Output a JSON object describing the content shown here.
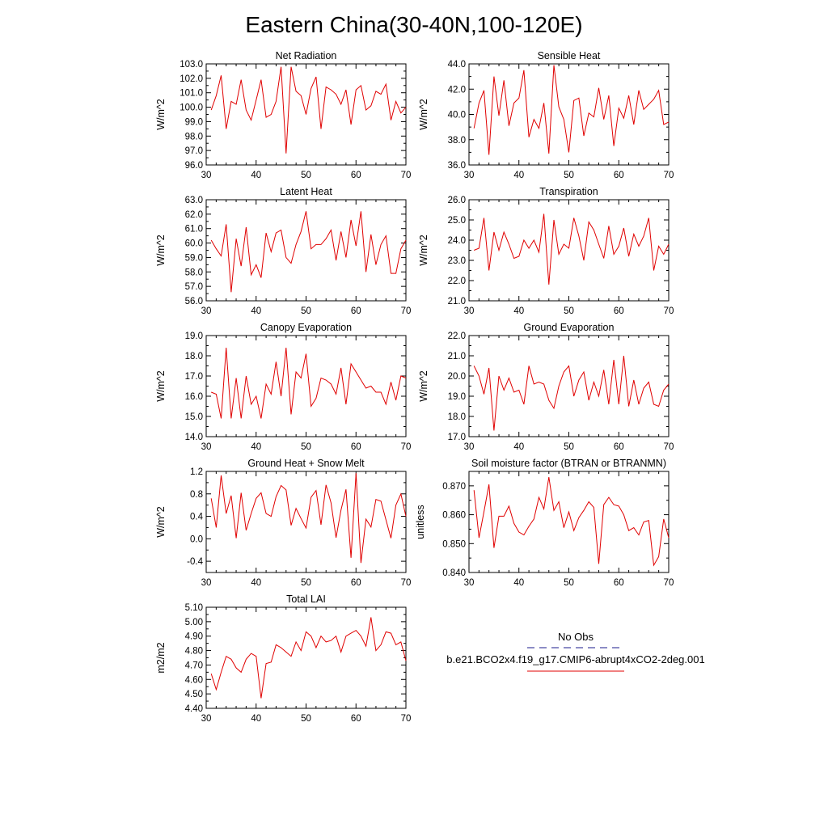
{
  "figure": {
    "title": "Eastern China(30-40N,100-120E)"
  },
  "legend": {
    "entries": [
      {
        "label": "No Obs",
        "color": "#1a1a8c",
        "style": "dashed"
      },
      {
        "label": "b.e21.BCO2x4.f19_g17.CMIP6-abrupt4xCO2-2deg.001",
        "color": "#e00000",
        "style": "solid"
      }
    ]
  },
  "chart_data": [
    {
      "type": "line",
      "title": "Net Radiation",
      "ylabel": "W/m^2",
      "xlim": [
        30,
        70
      ],
      "ylim": [
        96.0,
        103.0
      ],
      "xticks": [
        30,
        40,
        50,
        60,
        70
      ],
      "xtick_labels": [
        "30",
        "40",
        "50",
        "60",
        "70"
      ],
      "yticks": [
        96.0,
        97.0,
        98.0,
        99.0,
        100.0,
        101.0,
        102.0,
        103.0
      ],
      "ytick_labels": [
        "96.0",
        "97.0",
        "98.0",
        "99.0",
        "100.0",
        "101.0",
        "102.0",
        "103.0"
      ],
      "x": [
        31,
        32,
        33,
        34,
        35,
        36,
        37,
        38,
        39,
        40,
        41,
        42,
        43,
        44,
        45,
        46,
        47,
        48,
        49,
        50,
        51,
        52,
        53,
        54,
        55,
        56,
        57,
        58,
        59,
        60,
        61,
        62,
        63,
        64,
        65,
        66,
        67,
        68,
        69,
        70
      ],
      "series": [
        {
          "name": "b.e21.BCO2x4.f19_g17.CMIP6-abrupt4xCO2-2deg.001",
          "color": "#e00000",
          "values": [
            99.8,
            100.8,
            102.2,
            98.5,
            100.4,
            100.2,
            101.9,
            99.8,
            99.1,
            100.5,
            101.9,
            99.3,
            99.5,
            100.4,
            102.8,
            96.8,
            102.8,
            101.1,
            100.8,
            99.5,
            101.3,
            102.1,
            98.5,
            101.4,
            101.2,
            100.9,
            100.2,
            101.2,
            98.8,
            101.2,
            101.5,
            99.8,
            100.1,
            101.1,
            100.9,
            101.6,
            99.1,
            100.4,
            99.6,
            100.0
          ]
        }
      ]
    },
    {
      "type": "line",
      "title": "Sensible Heat",
      "ylabel": "W/m^2",
      "xlim": [
        30,
        70
      ],
      "ylim": [
        36.0,
        44.0
      ],
      "xticks": [
        30,
        40,
        50,
        60,
        70
      ],
      "xtick_labels": [
        "30",
        "40",
        "50",
        "60",
        "70"
      ],
      "yticks": [
        36.0,
        38.0,
        40.0,
        42.0,
        44.0
      ],
      "ytick_labels": [
        "36.0",
        "38.0",
        "40.0",
        "42.0",
        "44.0"
      ],
      "x": [
        31,
        32,
        33,
        34,
        35,
        36,
        37,
        38,
        39,
        40,
        41,
        42,
        43,
        44,
        45,
        46,
        47,
        48,
        49,
        50,
        51,
        52,
        53,
        54,
        55,
        56,
        57,
        58,
        59,
        60,
        61,
        62,
        63,
        64,
        65,
        66,
        67,
        68,
        69,
        70
      ],
      "series": [
        {
          "name": "b.e21.BCO2x4.f19_g17.CMIP6-abrupt4xCO2-2deg.001",
          "color": "#e00000",
          "values": [
            38.9,
            40.9,
            41.9,
            36.8,
            43.0,
            39.9,
            42.7,
            39.1,
            40.9,
            41.3,
            43.5,
            38.2,
            39.6,
            38.9,
            40.9,
            36.9,
            43.9,
            40.6,
            39.6,
            37.0,
            41.1,
            41.3,
            38.3,
            40.1,
            39.8,
            42.1,
            39.6,
            41.5,
            37.5,
            40.5,
            39.7,
            41.5,
            39.2,
            41.9,
            40.4,
            40.8,
            41.2,
            41.9,
            39.2,
            39.4
          ]
        }
      ]
    },
    {
      "type": "line",
      "title": "Latent Heat",
      "ylabel": "W/m^2",
      "xlim": [
        30,
        70
      ],
      "ylim": [
        56.0,
        63.0
      ],
      "xticks": [
        30,
        40,
        50,
        60,
        70
      ],
      "xtick_labels": [
        "30",
        "40",
        "50",
        "60",
        "70"
      ],
      "yticks": [
        56.0,
        57.0,
        58.0,
        59.0,
        60.0,
        61.0,
        62.0,
        63.0
      ],
      "ytick_labels": [
        "56.0",
        "57.0",
        "58.0",
        "59.0",
        "60.0",
        "61.0",
        "62.0",
        "63.0"
      ],
      "x": [
        31,
        32,
        33,
        34,
        35,
        36,
        37,
        38,
        39,
        40,
        41,
        42,
        43,
        44,
        45,
        46,
        47,
        48,
        49,
        50,
        51,
        52,
        53,
        54,
        55,
        56,
        57,
        58,
        59,
        60,
        61,
        62,
        63,
        64,
        65,
        66,
        67,
        68,
        69,
        70
      ],
      "series": [
        {
          "name": "b.e21.BCO2x4.f19_g17.CMIP6-abrupt4xCO2-2deg.001",
          "color": "#e00000",
          "values": [
            60.2,
            59.6,
            59.1,
            61.3,
            56.6,
            60.3,
            58.4,
            61.1,
            57.8,
            58.5,
            57.6,
            60.7,
            59.4,
            60.7,
            60.9,
            59.0,
            58.6,
            59.9,
            60.8,
            62.2,
            59.6,
            59.9,
            59.9,
            60.3,
            60.9,
            58.8,
            60.8,
            59.0,
            61.6,
            59.8,
            62.2,
            58.0,
            60.6,
            58.5,
            59.9,
            60.5,
            57.9,
            57.9,
            59.6,
            60.2
          ]
        }
      ]
    },
    {
      "type": "line",
      "title": "Transpiration",
      "ylabel": "W/m^2",
      "xlim": [
        30,
        70
      ],
      "ylim": [
        21.0,
        26.0
      ],
      "xticks": [
        30,
        40,
        50,
        60,
        70
      ],
      "xtick_labels": [
        "30",
        "40",
        "50",
        "60",
        "70"
      ],
      "yticks": [
        21.0,
        22.0,
        23.0,
        24.0,
        25.0,
        26.0
      ],
      "ytick_labels": [
        "21.0",
        "22.0",
        "23.0",
        "24.0",
        "25.0",
        "26.0"
      ],
      "x": [
        31,
        32,
        33,
        34,
        35,
        36,
        37,
        38,
        39,
        40,
        41,
        42,
        43,
        44,
        45,
        46,
        47,
        48,
        49,
        50,
        51,
        52,
        53,
        54,
        55,
        56,
        57,
        58,
        59,
        60,
        61,
        62,
        63,
        64,
        65,
        66,
        67,
        68,
        69,
        70
      ],
      "series": [
        {
          "name": "b.e21.BCO2x4.f19_g17.CMIP6-abrupt4xCO2-2deg.001",
          "color": "#e00000",
          "values": [
            23.5,
            23.6,
            25.1,
            22.5,
            24.4,
            23.5,
            24.4,
            23.8,
            23.1,
            23.2,
            24.0,
            23.6,
            24.0,
            23.4,
            25.3,
            21.8,
            25.0,
            23.3,
            23.8,
            23.6,
            25.1,
            24.2,
            23.0,
            24.9,
            24.5,
            23.8,
            23.1,
            24.7,
            23.3,
            23.7,
            24.6,
            23.2,
            24.3,
            23.7,
            24.2,
            25.1,
            22.5,
            23.7,
            23.3,
            23.8
          ]
        }
      ]
    },
    {
      "type": "line",
      "title": "Canopy Evaporation",
      "ylabel": "W/m^2",
      "xlim": [
        30,
        70
      ],
      "ylim": [
        14.0,
        19.0
      ],
      "xticks": [
        30,
        40,
        50,
        60,
        70
      ],
      "xtick_labels": [
        "30",
        "40",
        "50",
        "60",
        "70"
      ],
      "yticks": [
        14.0,
        15.0,
        16.0,
        17.0,
        18.0,
        19.0
      ],
      "ytick_labels": [
        "14.0",
        "15.0",
        "16.0",
        "17.0",
        "18.0",
        "19.0"
      ],
      "x": [
        31,
        32,
        33,
        34,
        35,
        36,
        37,
        38,
        39,
        40,
        41,
        42,
        43,
        44,
        45,
        46,
        47,
        48,
        49,
        50,
        51,
        52,
        53,
        54,
        55,
        56,
        57,
        58,
        59,
        60,
        61,
        62,
        63,
        64,
        65,
        66,
        67,
        68,
        69,
        70
      ],
      "series": [
        {
          "name": "b.e21.BCO2x4.f19_g17.CMIP6-abrupt4xCO2-2deg.001",
          "color": "#e00000",
          "values": [
            16.2,
            16.1,
            14.9,
            18.4,
            14.9,
            16.9,
            14.9,
            17.0,
            15.6,
            16.0,
            14.9,
            16.6,
            16.1,
            17.7,
            16.0,
            18.4,
            15.1,
            17.2,
            16.9,
            18.1,
            15.5,
            15.9,
            16.9,
            16.8,
            16.6,
            16.1,
            17.4,
            15.6,
            17.6,
            17.2,
            16.8,
            16.4,
            16.5,
            16.2,
            16.2,
            15.6,
            16.7,
            15.8,
            17.0,
            16.9
          ]
        }
      ]
    },
    {
      "type": "line",
      "title": "Ground Evaporation",
      "ylabel": "W/m^2",
      "xlim": [
        30,
        70
      ],
      "ylim": [
        17.0,
        22.0
      ],
      "xticks": [
        30,
        40,
        50,
        60,
        70
      ],
      "xtick_labels": [
        "30",
        "40",
        "50",
        "60",
        "70"
      ],
      "yticks": [
        17.0,
        18.0,
        19.0,
        20.0,
        21.0,
        22.0
      ],
      "ytick_labels": [
        "17.0",
        "18.0",
        "19.0",
        "20.0",
        "21.0",
        "22.0"
      ],
      "x": [
        31,
        32,
        33,
        34,
        35,
        36,
        37,
        38,
        39,
        40,
        41,
        42,
        43,
        44,
        45,
        46,
        47,
        48,
        49,
        50,
        51,
        52,
        53,
        54,
        55,
        56,
        57,
        58,
        59,
        60,
        61,
        62,
        63,
        64,
        65,
        66,
        67,
        68,
        69,
        70
      ],
      "series": [
        {
          "name": "b.e21.BCO2x4.f19_g17.CMIP6-abrupt4xCO2-2deg.001",
          "color": "#e00000",
          "values": [
            20.5,
            20.0,
            19.1,
            20.4,
            17.3,
            20.0,
            19.3,
            19.9,
            19.2,
            19.3,
            18.6,
            20.5,
            19.6,
            19.7,
            19.6,
            18.8,
            18.4,
            19.5,
            20.2,
            20.5,
            19.0,
            19.8,
            20.2,
            18.8,
            19.7,
            19.0,
            20.3,
            18.6,
            20.8,
            18.6,
            21.0,
            18.5,
            19.8,
            18.6,
            19.4,
            19.7,
            18.6,
            18.5,
            19.3,
            19.6
          ]
        }
      ]
    },
    {
      "type": "line",
      "title": "Ground Heat + Snow Melt",
      "ylabel": "W/m^2",
      "xlim": [
        30,
        70
      ],
      "ylim": [
        -0.6,
        1.2
      ],
      "xticks": [
        30,
        40,
        50,
        60,
        70
      ],
      "xtick_labels": [
        "30",
        "40",
        "50",
        "60",
        "70"
      ],
      "yticks": [
        -0.4,
        0.0,
        0.4,
        0.8,
        1.2
      ],
      "ytick_labels": [
        "-0.4",
        "0.0",
        "0.4",
        "0.8",
        "1.2"
      ],
      "x": [
        31,
        32,
        33,
        34,
        35,
        36,
        37,
        38,
        39,
        40,
        41,
        42,
        43,
        44,
        45,
        46,
        47,
        48,
        49,
        50,
        51,
        52,
        53,
        54,
        55,
        56,
        57,
        58,
        59,
        60,
        61,
        62,
        63,
        64,
        65,
        66,
        67,
        68,
        69,
        70
      ],
      "series": [
        {
          "name": "b.e21.BCO2x4.f19_g17.CMIP6-abrupt4xCO2-2deg.001",
          "color": "#e00000",
          "values": [
            0.72,
            0.2,
            1.13,
            0.45,
            0.77,
            0.01,
            0.82,
            0.15,
            0.45,
            0.72,
            0.82,
            0.45,
            0.4,
            0.75,
            0.95,
            0.87,
            0.24,
            0.54,
            0.36,
            0.19,
            0.74,
            0.86,
            0.25,
            0.96,
            0.64,
            0.02,
            0.51,
            0.88,
            -0.34,
            1.17,
            -0.43,
            0.35,
            0.21,
            0.7,
            0.67,
            0.34,
            0.01,
            0.6,
            0.8,
            0.4
          ]
        }
      ]
    },
    {
      "type": "line",
      "title": "Soil moisture factor (BTRAN or BTRANMN)",
      "ylabel": "unitless",
      "xlim": [
        30,
        70
      ],
      "ylim": [
        0.84,
        0.875
      ],
      "xticks": [
        30,
        40,
        50,
        60,
        70
      ],
      "xtick_labels": [
        "30",
        "40",
        "50",
        "60",
        "70"
      ],
      "yticks": [
        0.84,
        0.85,
        0.86,
        0.87
      ],
      "ytick_labels": [
        "0.840",
        "0.850",
        "0.860",
        "0.870"
      ],
      "x": [
        31,
        32,
        33,
        34,
        35,
        36,
        37,
        38,
        39,
        40,
        41,
        42,
        43,
        44,
        45,
        46,
        47,
        48,
        49,
        50,
        51,
        52,
        53,
        54,
        55,
        56,
        57,
        58,
        59,
        60,
        61,
        62,
        63,
        64,
        65,
        66,
        67,
        68,
        69,
        70
      ],
      "series": [
        {
          "name": "b.e21.BCO2x4.f19_g17.CMIP6-abrupt4xCO2-2deg.001",
          "color": "#e00000",
          "values": [
            0.8685,
            0.852,
            0.861,
            0.8705,
            0.8485,
            0.8595,
            0.8595,
            0.863,
            0.857,
            0.854,
            0.853,
            0.856,
            0.8585,
            0.866,
            0.862,
            0.873,
            0.8615,
            0.8645,
            0.8555,
            0.861,
            0.8545,
            0.859,
            0.8615,
            0.8645,
            0.8625,
            0.843,
            0.8635,
            0.866,
            0.8635,
            0.863,
            0.86,
            0.8545,
            0.8555,
            0.853,
            0.8575,
            0.858,
            0.8425,
            0.8455,
            0.8585,
            0.852
          ]
        }
      ]
    },
    {
      "type": "line",
      "title": "Total LAI",
      "ylabel": "m2/m2",
      "xlim": [
        30,
        70
      ],
      "ylim": [
        4.4,
        5.1
      ],
      "xticks": [
        30,
        40,
        50,
        60,
        70
      ],
      "xtick_labels": [
        "30",
        "40",
        "50",
        "60",
        "70"
      ],
      "yticks": [
        4.4,
        4.5,
        4.6,
        4.7,
        4.8,
        4.9,
        5.0,
        5.1
      ],
      "ytick_labels": [
        "4.40",
        "4.50",
        "4.60",
        "4.70",
        "4.80",
        "4.90",
        "5.00",
        "5.10"
      ],
      "x": [
        31,
        32,
        33,
        34,
        35,
        36,
        37,
        38,
        39,
        40,
        41,
        42,
        43,
        44,
        45,
        46,
        47,
        48,
        49,
        50,
        51,
        52,
        53,
        54,
        55,
        56,
        57,
        58,
        59,
        60,
        61,
        62,
        63,
        64,
        65,
        66,
        67,
        68,
        69,
        70
      ],
      "series": [
        {
          "name": "b.e21.BCO2x4.f19_g17.CMIP6-abrupt4xCO2-2deg.001",
          "color": "#e00000",
          "values": [
            4.64,
            4.53,
            4.65,
            4.76,
            4.74,
            4.68,
            4.65,
            4.74,
            4.78,
            4.76,
            4.47,
            4.71,
            4.72,
            4.84,
            4.82,
            4.79,
            4.76,
            4.86,
            4.8,
            4.93,
            4.9,
            4.82,
            4.9,
            4.86,
            4.87,
            4.9,
            4.79,
            4.9,
            4.92,
            4.94,
            4.9,
            4.83,
            5.03,
            4.8,
            4.84,
            4.93,
            4.92,
            4.84,
            4.86,
            4.73
          ]
        }
      ]
    }
  ]
}
